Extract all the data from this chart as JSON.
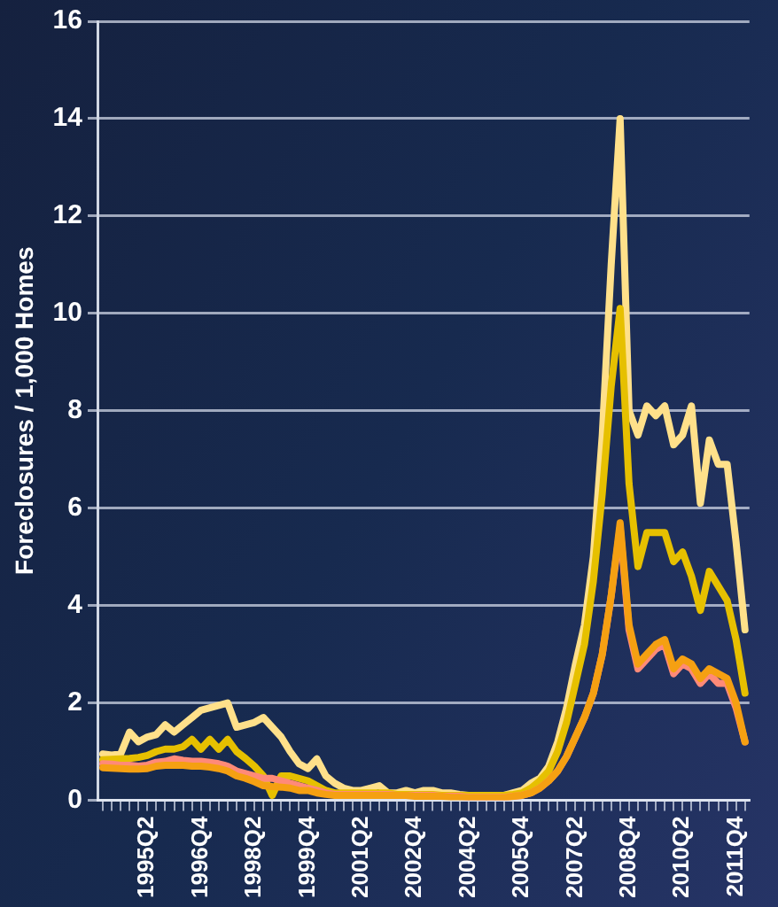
{
  "chart_data": {
    "type": "line",
    "ylabel": "Foreclosures / 1,000 Homes",
    "categories": [
      null,
      null,
      null,
      null,
      null,
      "1995Q2",
      null,
      null,
      null,
      null,
      null,
      "1996Q4",
      null,
      null,
      null,
      null,
      null,
      "1998Q2",
      null,
      null,
      null,
      null,
      null,
      "1999Q4",
      null,
      null,
      null,
      null,
      null,
      "2001Q2",
      null,
      null,
      null,
      null,
      null,
      "2002Q4",
      null,
      null,
      null,
      null,
      null,
      "2004Q2",
      null,
      null,
      null,
      null,
      null,
      "2005Q4",
      null,
      null,
      null,
      null,
      null,
      "2007Q2",
      null,
      null,
      null,
      null,
      null,
      "2008Q4",
      null,
      null,
      null,
      null,
      null,
      "2010Q2",
      null,
      null,
      null,
      null,
      null,
      "2011Q4",
      null
    ],
    "series": [
      {
        "color": "#ffe08a",
        "values": [
          0.95,
          0.93,
          0.95,
          1.4,
          1.2,
          1.3,
          1.35,
          1.55,
          1.4,
          1.55,
          1.7,
          1.85,
          1.9,
          1.95,
          2.0,
          1.5,
          1.55,
          1.6,
          1.7,
          1.5,
          1.3,
          1.0,
          0.75,
          0.65,
          0.85,
          0.5,
          0.35,
          0.25,
          0.2,
          0.2,
          0.25,
          0.3,
          0.15,
          0.15,
          0.2,
          0.15,
          0.2,
          0.2,
          0.15,
          0.15,
          0.12,
          0.1,
          0.1,
          0.1,
          0.1,
          0.1,
          0.15,
          0.2,
          0.35,
          0.45,
          0.7,
          1.2,
          1.9,
          2.8,
          3.6,
          5.0,
          7.5,
          11,
          14,
          8.0,
          7.5,
          8.1,
          7.9,
          8.1,
          7.3,
          7.5,
          8.1,
          6.1,
          7.4,
          6.9,
          6.9,
          5.3,
          3.5
        ]
      },
      {
        "color": "#e6c000",
        "values": [
          0.83,
          0.84,
          0.85,
          0.86,
          0.88,
          0.92,
          1.0,
          1.05,
          1.05,
          1.1,
          1.25,
          1.05,
          1.25,
          1.05,
          1.25,
          1.0,
          0.86,
          0.7,
          0.5,
          0.1,
          0.5,
          0.5,
          0.45,
          0.4,
          0.3,
          0.2,
          0.15,
          0.15,
          0.15,
          0.15,
          0.15,
          0.15,
          0.15,
          0.12,
          0.12,
          0.12,
          0.12,
          0.12,
          0.1,
          0.1,
          0.1,
          0.1,
          0.1,
          0.1,
          0.1,
          0.1,
          0.12,
          0.15,
          0.25,
          0.4,
          0.6,
          1.0,
          1.6,
          2.4,
          3.2,
          4.5,
          6.3,
          8.5,
          10.1,
          6.5,
          4.8,
          5.5,
          5.5,
          5.5,
          4.9,
          5.1,
          4.6,
          3.9,
          4.7,
          4.4,
          4.1,
          3.3,
          2.2
        ]
      },
      {
        "color": "#ff8a78",
        "values": [
          0.75,
          0.74,
          0.72,
          0.72,
          0.7,
          0.72,
          0.78,
          0.8,
          0.85,
          0.82,
          0.8,
          0.8,
          0.78,
          0.75,
          0.7,
          0.6,
          0.55,
          0.5,
          0.45,
          0.45,
          0.4,
          0.35,
          0.3,
          0.25,
          0.2,
          0.15,
          0.12,
          0.12,
          0.12,
          0.12,
          0.12,
          0.12,
          0.12,
          0.1,
          0.1,
          0.1,
          0.1,
          0.1,
          0.08,
          0.08,
          0.08,
          0.06,
          0.06,
          0.06,
          0.06,
          0.06,
          0.08,
          0.1,
          0.15,
          0.25,
          0.4,
          0.6,
          0.9,
          1.3,
          1.7,
          2.2,
          3.0,
          4.2,
          5.6,
          3.5,
          2.7,
          2.9,
          3.1,
          3.2,
          2.6,
          2.8,
          2.7,
          2.4,
          2.6,
          2.4,
          2.4,
          1.9,
          1.2
        ]
      },
      {
        "color": "#f5a012",
        "values": [
          0.67,
          0.66,
          0.65,
          0.64,
          0.64,
          0.65,
          0.7,
          0.72,
          0.72,
          0.72,
          0.7,
          0.7,
          0.68,
          0.65,
          0.6,
          0.5,
          0.45,
          0.38,
          0.3,
          0.28,
          0.27,
          0.25,
          0.2,
          0.2,
          0.15,
          0.12,
          0.1,
          0.1,
          0.1,
          0.1,
          0.1,
          0.1,
          0.1,
          0.1,
          0.1,
          0.08,
          0.08,
          0.08,
          0.08,
          0.06,
          0.06,
          0.05,
          0.05,
          0.05,
          0.05,
          0.05,
          0.08,
          0.1,
          0.15,
          0.25,
          0.4,
          0.6,
          0.9,
          1.3,
          1.7,
          2.2,
          3.0,
          4.2,
          5.7,
          3.6,
          2.8,
          3.0,
          3.2,
          3.3,
          2.7,
          2.9,
          2.8,
          2.5,
          2.7,
          2.6,
          2.5,
          2.0,
          1.2
        ]
      }
    ],
    "ylim": [
      0,
      16
    ],
    "yticks": [
      0,
      2,
      4,
      6,
      8,
      10,
      12,
      14,
      16
    ],
    "grid": "y",
    "legend": false,
    "marker": "none",
    "line_style": "solid"
  }
}
